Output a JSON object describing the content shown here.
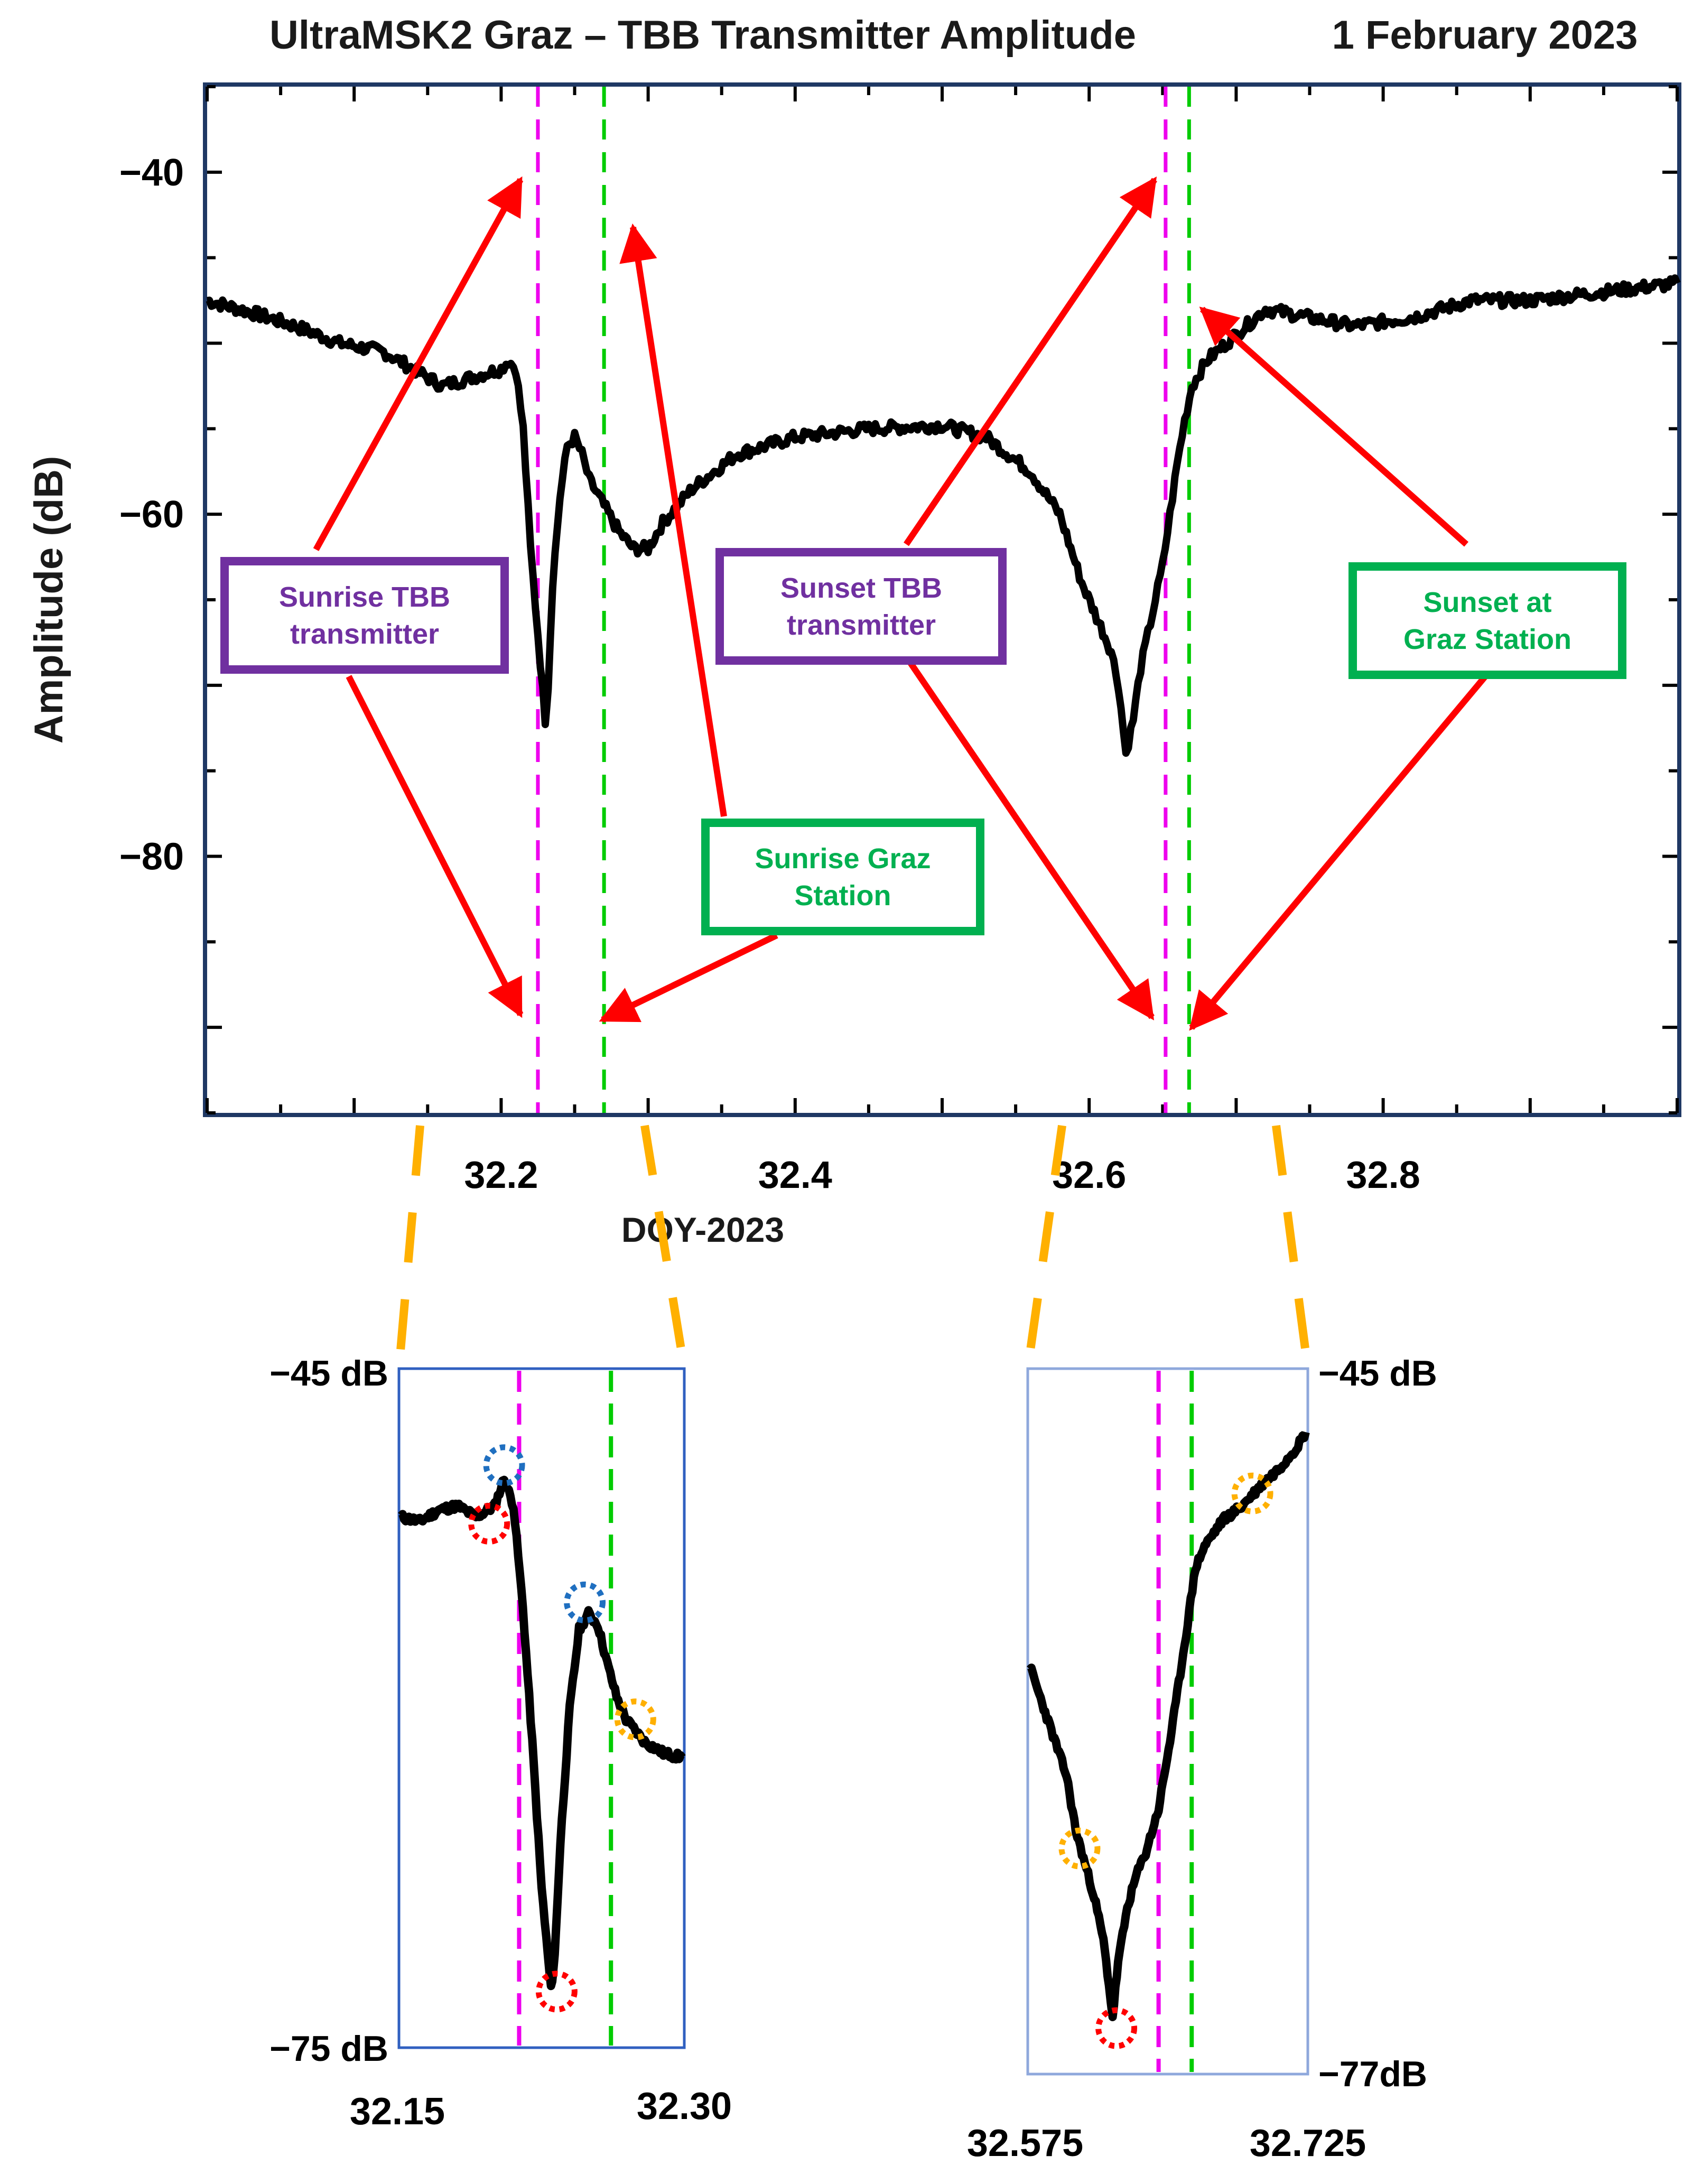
{
  "chart_data": [
    {
      "type": "line",
      "id": "main",
      "title": "UltraMSK2 Graz – TBB Transmitter Amplitude",
      "date": "1 February 2023",
      "xlabel": "DOY-2023",
      "ylabel": "Amplitude (dB)",
      "xlim": [
        32.0,
        33.0
      ],
      "ylim": [
        -95,
        -35
      ],
      "x_ticks": [
        32.2,
        32.4,
        32.6,
        32.8
      ],
      "x_tick_labels": [
        "32.2",
        "32.4",
        "32.6",
        "32.8"
      ],
      "y_ticks": [
        -40,
        -60,
        -80
      ],
      "y_tick_labels": [
        "−40",
        "−60",
        "−80"
      ],
      "series": [
        {
          "name": "Amplitude",
          "color": "#000000",
          "x": [
            32.0,
            32.03,
            32.06,
            32.09,
            32.12,
            32.14,
            32.16,
            32.18,
            32.2,
            32.205,
            32.21,
            32.215,
            32.22,
            32.225,
            32.23,
            32.232,
            32.235,
            32.24,
            32.245,
            32.25,
            32.255,
            32.26,
            32.27,
            32.28,
            32.29,
            32.3,
            32.31,
            32.33,
            32.36,
            32.4,
            32.45,
            32.5,
            32.53,
            32.56,
            32.58,
            32.595,
            32.605,
            32.615,
            32.62,
            32.625,
            32.63,
            32.635,
            32.64,
            32.645,
            32.65,
            32.655,
            32.66,
            32.665,
            32.67,
            32.68,
            32.7,
            32.72,
            32.75,
            32.78,
            32.82,
            32.86,
            32.9,
            32.95,
            33.0
          ],
          "y": [
            -47.5,
            -48.2,
            -49.0,
            -50.0,
            -50.5,
            -51.5,
            -52.5,
            -52.0,
            -51.5,
            -51.0,
            -51.5,
            -55.0,
            -62.0,
            -67.0,
            -72.0,
            -70.0,
            -64.0,
            -59.0,
            -56.0,
            -55.5,
            -56.5,
            -58.0,
            -59.5,
            -61.0,
            -62.0,
            -62.0,
            -60.5,
            -58.5,
            -56.5,
            -55.5,
            -55.0,
            -54.8,
            -55.5,
            -57.5,
            -60.0,
            -64.0,
            -66.0,
            -68.0,
            -70.0,
            -74.0,
            -72.0,
            -69.0,
            -67.0,
            -65.0,
            -63.0,
            -60.0,
            -57.0,
            -54.5,
            -52.5,
            -51.0,
            -49.5,
            -48.0,
            -48.5,
            -49.0,
            -48.5,
            -47.5,
            -47.5,
            -47.0,
            -46.5
          ]
        }
      ],
      "vlines": [
        {
          "x": 32.225,
          "color": "#ee00ee",
          "label": "Sunrise TBB transmitter"
        },
        {
          "x": 32.27,
          "color": "#00cc00",
          "label": "Sunrise Graz Station"
        },
        {
          "x": 32.652,
          "color": "#ee00ee",
          "label": "Sunset TBB transmitter"
        },
        {
          "x": 32.668,
          "color": "#00cc00",
          "label": "Sunset at Graz Station"
        }
      ],
      "annotations": [
        {
          "text": [
            "Sunrise TBB",
            "transmitter"
          ],
          "color": "#7030a0",
          "border": "#7030a0"
        },
        {
          "text": [
            "Sunrise Graz",
            "Station"
          ],
          "color": "#00b050",
          "border": "#00b050"
        },
        {
          "text": [
            "Sunset TBB",
            "transmitter"
          ],
          "color": "#7030a0",
          "border": "#7030a0"
        },
        {
          "text": [
            "Sunset at",
            "Graz Station"
          ],
          "color": "#00b050",
          "border": "#00b050"
        }
      ],
      "arrow_color": "#ff0000"
    },
    {
      "type": "line",
      "id": "inset_sunrise",
      "xlim": [
        32.15,
        32.3
      ],
      "ylim": [
        -75,
        -45
      ],
      "x_tick_labels": [
        "32.15",
        "32.30"
      ],
      "y_tick_labels": [
        "−45 dB",
        "−75 dB"
      ],
      "series": [
        {
          "name": "Amplitude",
          "color": "#000000",
          "x": [
            32.15,
            32.16,
            32.17,
            32.18,
            32.19,
            32.2,
            32.205,
            32.21,
            32.215,
            32.22,
            32.225,
            32.23,
            32.232,
            32.235,
            32.24,
            32.245,
            32.25,
            32.255,
            32.26,
            32.265,
            32.27,
            32.28,
            32.29,
            32.3
          ],
          "y": [
            -51.5,
            -51.7,
            -51.2,
            -51.0,
            -51.5,
            -51.0,
            -49.8,
            -51.0,
            -55.5,
            -61.5,
            -68.0,
            -72.5,
            -71.0,
            -66.0,
            -60.0,
            -56.5,
            -55.8,
            -56.3,
            -58.0,
            -59.5,
            -60.5,
            -61.5,
            -62.0,
            -62.2
          ]
        }
      ],
      "vlines": [
        {
          "x": 32.213,
          "color": "#ee00ee"
        },
        {
          "x": 32.262,
          "color": "#00cc00"
        }
      ],
      "markers": [
        {
          "x": 32.197,
          "y": -51.8,
          "color": "#ff0000"
        },
        {
          "x": 32.205,
          "y": -49.2,
          "color": "#1f6fc0"
        },
        {
          "x": 32.233,
          "y": -72.6,
          "color": "#ff0000"
        },
        {
          "x": 32.248,
          "y": -55.3,
          "color": "#1f6fc0"
        },
        {
          "x": 32.275,
          "y": -60.5,
          "color": "#ffb000"
        }
      ]
    },
    {
      "type": "line",
      "id": "inset_sunset",
      "xlim": [
        32.575,
        32.725
      ],
      "ylim": [
        -77,
        -45
      ],
      "x_tick_labels": [
        "32.575",
        "32.725"
      ],
      "y_tick_labels": [
        "−45 dB",
        "−77dB"
      ],
      "series": [
        {
          "name": "Amplitude",
          "color": "#000000",
          "x": [
            32.575,
            32.585,
            32.595,
            32.6,
            32.605,
            32.61,
            32.615,
            32.618,
            32.62,
            32.623,
            32.628,
            32.633,
            32.638,
            32.645,
            32.652,
            32.66,
            32.665,
            32.67,
            32.68,
            32.69,
            32.7,
            32.71,
            32.72,
            32.725
          ],
          "y": [
            -58.5,
            -61.0,
            -63.5,
            -66.0,
            -67.5,
            -69.0,
            -71.0,
            -73.0,
            -74.5,
            -72.0,
            -69.5,
            -68.0,
            -67.0,
            -65.0,
            -61.5,
            -57.0,
            -54.0,
            -53.0,
            -51.8,
            -51.2,
            -50.3,
            -49.5,
            -48.5,
            -47.8
          ]
        }
      ],
      "vlines": [
        {
          "x": 32.645,
          "color": "#ee00ee"
        },
        {
          "x": 32.663,
          "color": "#00cc00"
        }
      ],
      "markers": [
        {
          "x": 32.602,
          "y": -66.8,
          "color": "#ffb000"
        },
        {
          "x": 32.622,
          "y": -75.0,
          "color": "#ff0000"
        },
        {
          "x": 32.696,
          "y": -50.6,
          "color": "#ffb000"
        }
      ]
    }
  ]
}
